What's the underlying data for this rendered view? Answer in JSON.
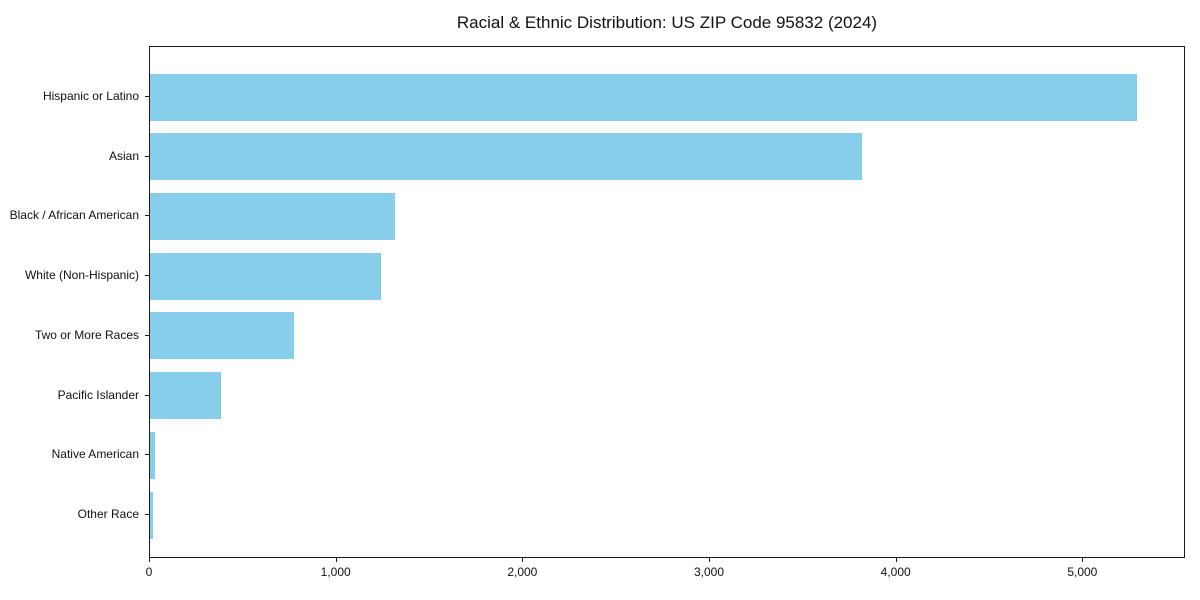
{
  "chart_data": {
    "type": "bar",
    "orientation": "horizontal",
    "title": "Racial & Ethnic Distribution: US ZIP Code 95832 (2024)",
    "categories": [
      "Hispanic or Latino",
      "Asian",
      "Black / African American",
      "White (Non-Hispanic)",
      "Two or More Races",
      "Pacific Islander",
      "Native American",
      "Other Race"
    ],
    "values": [
      5290,
      3815,
      1310,
      1235,
      770,
      380,
      25,
      15
    ],
    "xlabel": "",
    "ylabel": "",
    "xlim": [
      0,
      5550
    ],
    "xticks": [
      0,
      1000,
      2000,
      3000,
      4000,
      5000
    ],
    "xtick_labels": [
      "0",
      "1,000",
      "2,000",
      "3,000",
      "4,000",
      "5,000"
    ],
    "bar_color": "#87CEEB",
    "grid": false,
    "legend_position": "none",
    "background_color": "#ffffff"
  }
}
